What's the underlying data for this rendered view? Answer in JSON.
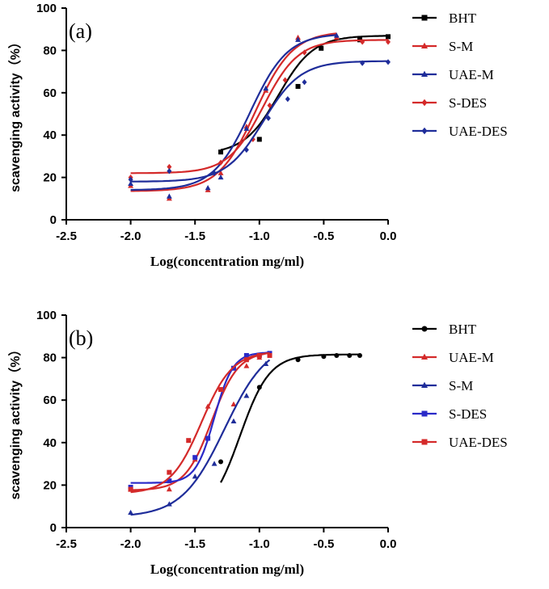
{
  "chart_data": [
    {
      "type": "scatter",
      "panel_label": "(a)",
      "xlabel": "Log(concentration mg/ml)",
      "ylabel": "scavenging activity（%）",
      "xlim": [
        -2.5,
        0.0
      ],
      "ylim": [
        0,
        100
      ],
      "x_ticks": [
        "-2.5",
        "-2.0",
        "-1.5",
        "-1.0",
        "-0.5",
        "0.0"
      ],
      "y_ticks": [
        "0",
        "20",
        "40",
        "60",
        "80",
        "100"
      ],
      "legend_position": "right",
      "series": [
        {
          "name": "BHT",
          "color": "#000000",
          "marker": "square",
          "points": [
            [
              -1.3,
              32
            ],
            [
              -1.0,
              38
            ],
            [
              -0.7,
              63
            ],
            [
              -0.52,
              81
            ],
            [
              -0.22,
              85
            ],
            [
              0.0,
              86.5
            ]
          ],
          "fit": {
            "bottom": 31,
            "top": 87,
            "logec50": -0.85,
            "hill": 3.2,
            "x_range": [
              -1.3,
              0.0
            ]
          }
        },
        {
          "name": "S-M",
          "color": "#d42a2a",
          "marker": "triangle",
          "points": [
            [
              -2.0,
              16
            ],
            [
              -1.7,
              10
            ],
            [
              -1.4,
              14
            ],
            [
              -1.3,
              22
            ],
            [
              -1.1,
              44
            ],
            [
              -0.95,
              61
            ],
            [
              -0.7,
              86
            ],
            [
              -0.4,
              86
            ]
          ],
          "fit": {
            "bottom": 13.5,
            "top": 89,
            "logec50": -1.03,
            "hill": 3.0,
            "x_range": [
              -2.0,
              -0.4
            ]
          }
        },
        {
          "name": "UAE-M",
          "color": "#1f2d9a",
          "marker": "triangle",
          "points": [
            [
              -2.0,
              17
            ],
            [
              -1.7,
              11
            ],
            [
              -1.4,
              15
            ],
            [
              -1.3,
              20
            ],
            [
              -1.1,
              43
            ],
            [
              -0.95,
              62
            ],
            [
              -0.7,
              85
            ],
            [
              -0.4,
              87
            ]
          ],
          "fit": {
            "bottom": 14,
            "top": 88,
            "logec50": -1.07,
            "hill": 3.0,
            "x_range": [
              -2.0,
              -0.4
            ]
          }
        },
        {
          "name": "S-DES",
          "color": "#d42a2a",
          "marker": "diamond",
          "points": [
            [
              -2.0,
              20
            ],
            [
              -1.7,
              25
            ],
            [
              -1.3,
              27
            ],
            [
              -1.05,
              38
            ],
            [
              -0.92,
              54
            ],
            [
              -0.8,
              66
            ],
            [
              -0.65,
              79
            ],
            [
              -0.2,
              84
            ],
            [
              0.0,
              84
            ]
          ],
          "fit": {
            "bottom": 22,
            "top": 85,
            "logec50": -0.97,
            "hill": 3.2,
            "x_range": [
              -2.0,
              0.0
            ]
          }
        },
        {
          "name": "UAE-DES",
          "color": "#1f2d9a",
          "marker": "diamond",
          "points": [
            [
              -2.0,
              19
            ],
            [
              -1.7,
              23
            ],
            [
              -1.35,
              22
            ],
            [
              -1.1,
              33
            ],
            [
              -0.93,
              48
            ],
            [
              -0.78,
              57
            ],
            [
              -0.65,
              65
            ],
            [
              -0.2,
              74
            ],
            [
              0.0,
              74.5
            ]
          ],
          "fit": {
            "bottom": 18,
            "top": 75,
            "logec50": -0.97,
            "hill": 3.0,
            "x_range": [
              -2.0,
              0.0
            ]
          }
        }
      ]
    },
    {
      "type": "scatter",
      "panel_label": "(b)",
      "xlabel": "Log(concentration mg/ml)",
      "ylabel": "scavenging activity（%）",
      "xlim": [
        -2.5,
        0.0
      ],
      "ylim": [
        0,
        100
      ],
      "x_ticks": [
        "-2.5",
        "-2.0",
        "-1.5",
        "-1.0",
        "-0.5",
        "0.0"
      ],
      "y_ticks": [
        "0",
        "20",
        "40",
        "60",
        "80",
        "100"
      ],
      "legend_position": "right",
      "series": [
        {
          "name": "BHT",
          "color": "#000000",
          "marker": "circle",
          "points": [
            [
              -1.3,
              31
            ],
            [
              -1.0,
              66
            ],
            [
              -0.7,
              79
            ],
            [
              -0.5,
              80.5
            ],
            [
              -0.4,
              81
            ],
            [
              -0.3,
              81
            ],
            [
              -0.22,
              81
            ]
          ],
          "fit": {
            "bottom": 5,
            "top": 81.5,
            "logec50": -1.15,
            "hill": 3.8,
            "x_range": [
              -1.3,
              -0.22
            ]
          }
        },
        {
          "name": "UAE-M",
          "color": "#d42a2a",
          "marker": "triangle",
          "points": [
            [
              -2.0,
              18
            ],
            [
              -1.7,
              18
            ],
            [
              -1.5,
              32
            ],
            [
              -1.4,
              57
            ],
            [
              -1.2,
              58
            ],
            [
              -1.1,
              76
            ],
            [
              -1.0,
              80
            ]
          ],
          "fit": {
            "bottom": 17.5,
            "top": 83,
            "logec50": -1.37,
            "hill": 4.2,
            "x_range": [
              -2.0,
              -0.95
            ]
          }
        },
        {
          "name": "S-M",
          "color": "#1f2d9a",
          "marker": "triangle",
          "points": [
            [
              -2.0,
              7
            ],
            [
              -1.7,
              11
            ],
            [
              -1.5,
              24
            ],
            [
              -1.35,
              30
            ],
            [
              -1.2,
              50
            ],
            [
              -1.1,
              62
            ],
            [
              -0.95,
              77
            ]
          ],
          "fit": {
            "bottom": 5,
            "top": 88,
            "logec50": -1.27,
            "hill": 2.6,
            "x_range": [
              -2.0,
              -0.92
            ]
          }
        },
        {
          "name": "S-DES",
          "color": "#2a2ac8",
          "marker": "square",
          "points": [
            [
              -2.0,
              19
            ],
            [
              -1.7,
              22
            ],
            [
              -1.5,
              33
            ],
            [
              -1.4,
              42
            ],
            [
              -1.2,
              75
            ],
            [
              -1.1,
              81
            ],
            [
              -1.0,
              81
            ],
            [
              -0.92,
              82
            ]
          ],
          "fit": {
            "bottom": 21,
            "top": 82.5,
            "logec50": -1.35,
            "hill": 6.0,
            "x_range": [
              -2.0,
              -0.92
            ]
          }
        },
        {
          "name": "UAE-DES",
          "color": "#d42a2a",
          "marker": "square",
          "points": [
            [
              -2.0,
              18
            ],
            [
              -1.7,
              26
            ],
            [
              -1.55,
              41
            ],
            [
              -1.3,
              65
            ],
            [
              -1.1,
              79
            ],
            [
              -1.0,
              81
            ],
            [
              -0.92,
              81
            ]
          ],
          "fit": {
            "bottom": 16,
            "top": 83,
            "logec50": -1.45,
            "hill": 3.6,
            "x_range": [
              -2.0,
              -0.92
            ]
          }
        }
      ]
    }
  ]
}
